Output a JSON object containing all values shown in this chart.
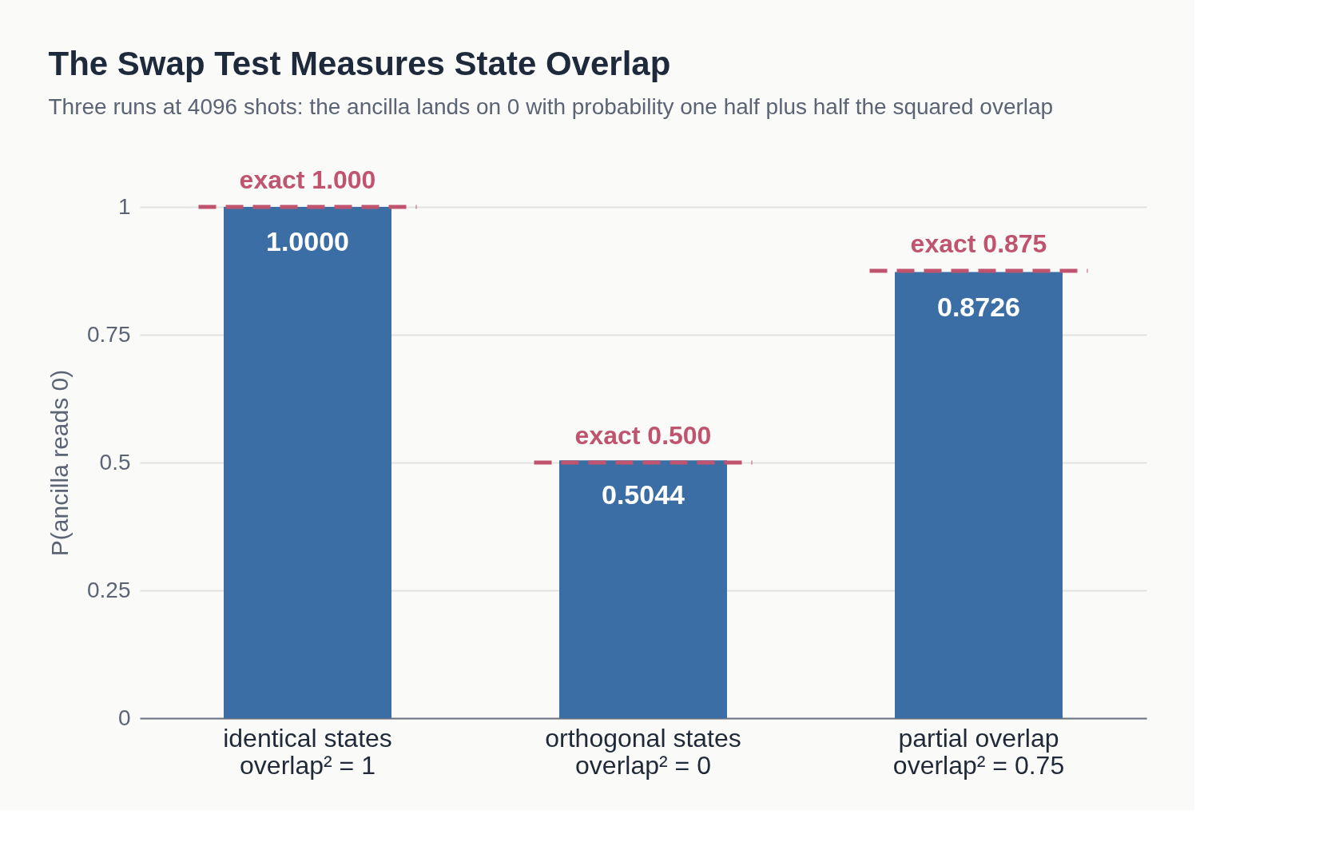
{
  "chart_data": {
    "type": "bar",
    "title": "The Swap Test Measures State Overlap",
    "subtitle": "Three runs at 4096 shots: the ancilla lands on 0 with probability one half plus half the squared overlap",
    "ylabel": "P(ancilla reads 0)",
    "categories": [
      "identical states\noverlap² = 1",
      "orthogonal states\noverlap² = 0",
      "partial overlap\noverlap² = 0.75"
    ],
    "series": [
      {
        "color": "#3b6ea5",
        "values": [
          1.0,
          0.5044,
          0.8726
        ],
        "value_labels": [
          "1.0000",
          "0.5044",
          "0.8726"
        ]
      }
    ],
    "ref_lines": [
      {
        "axis": "y",
        "value": 1.0,
        "label": "exact 1.000",
        "color": "#c0546e",
        "line_style": "dashed"
      },
      {
        "axis": "y",
        "value": 0.5,
        "label": "exact 0.500",
        "color": "#c0546e",
        "line_style": "dashed"
      },
      {
        "axis": "y",
        "value": 0.875,
        "label": "exact 0.875",
        "color": "#c0546e",
        "line_style": "dashed"
      }
    ],
    "ylim": [
      0,
      1
    ],
    "yticks": [
      0,
      0.25,
      0.5,
      0.75,
      1
    ],
    "grid": "y"
  }
}
